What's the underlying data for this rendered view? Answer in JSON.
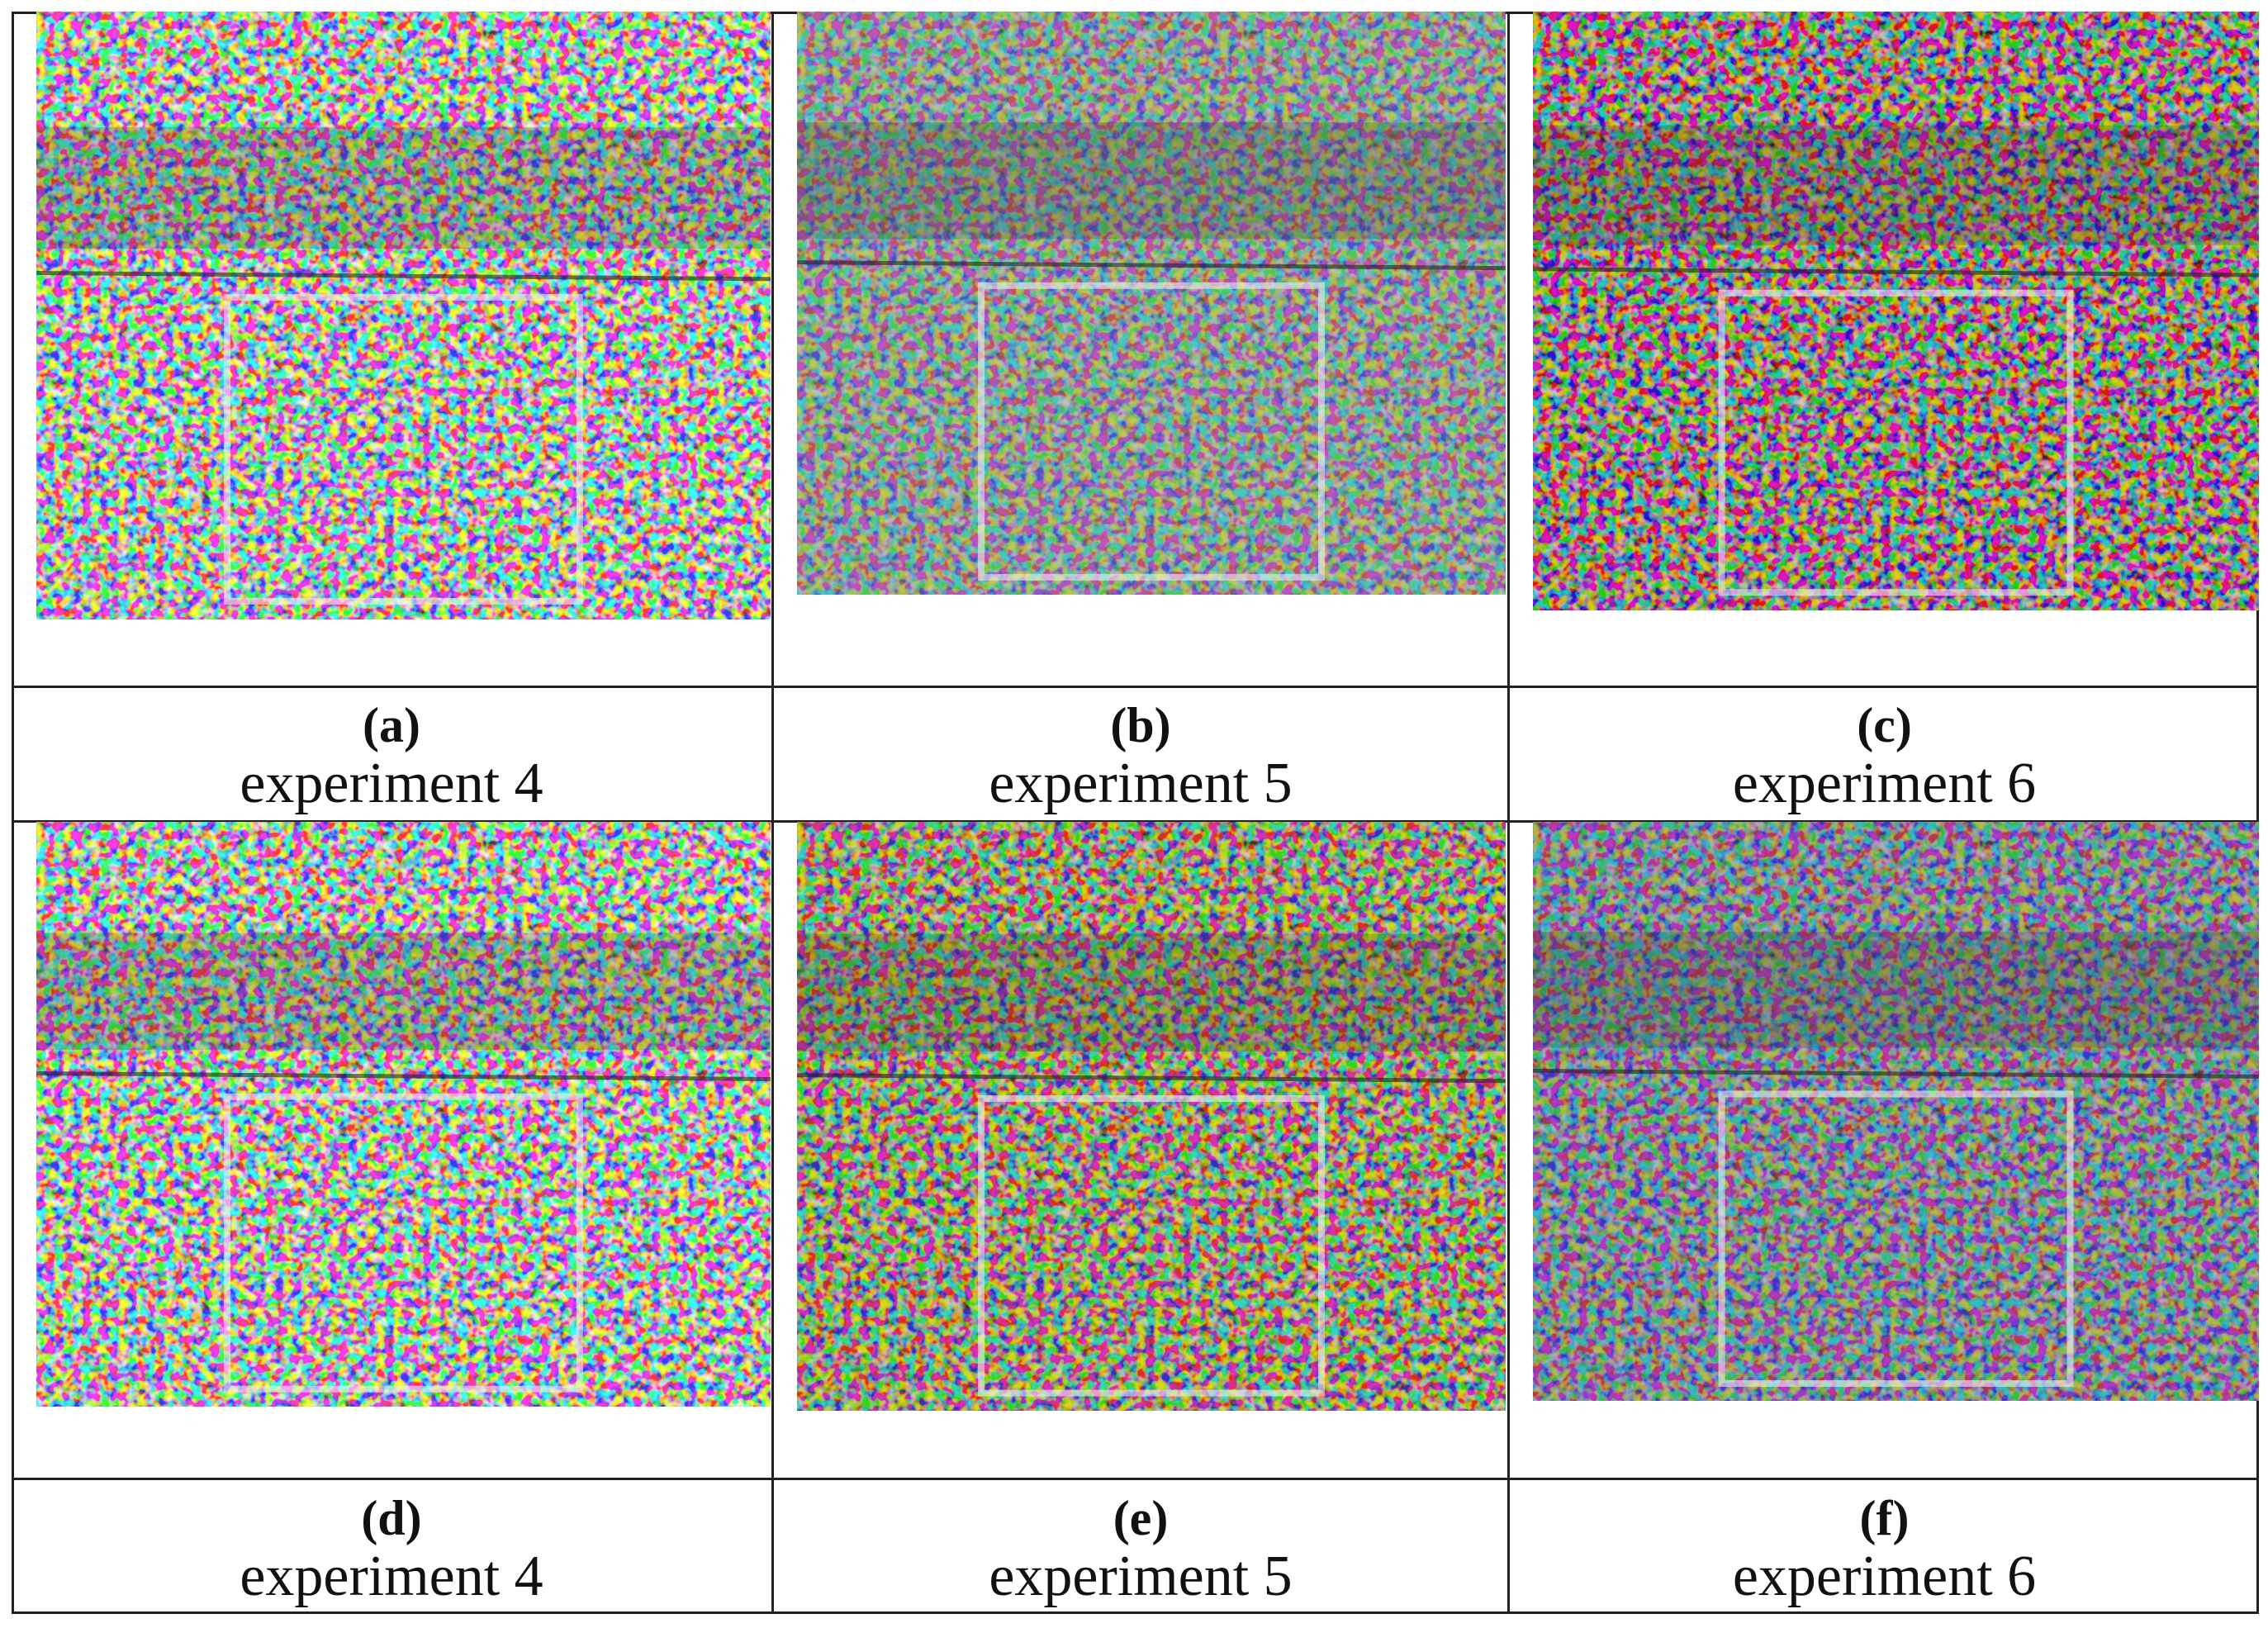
{
  "panels": [
    {
      "label": "(a)",
      "caption": "experiment 4"
    },
    {
      "label": "(b)",
      "caption": "experiment 5"
    },
    {
      "label": "(c)",
      "caption": "experiment 6"
    },
    {
      "label": "(d)",
      "caption": "experiment 4"
    },
    {
      "label": "(e)",
      "caption": "experiment 5"
    },
    {
      "label": "(f)",
      "caption": "experiment 6"
    }
  ]
}
